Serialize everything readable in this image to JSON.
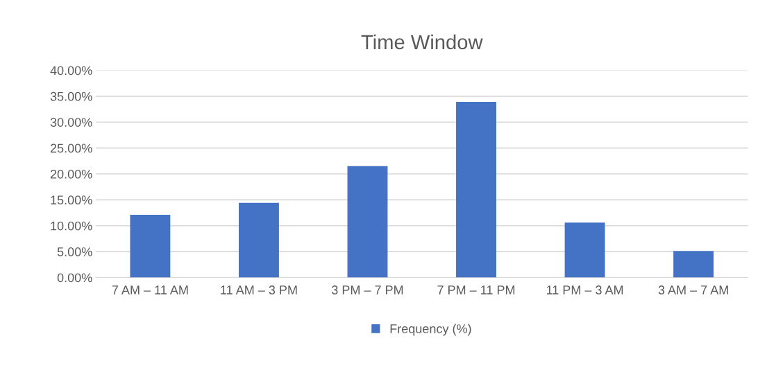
{
  "chart_data": {
    "type": "bar",
    "title": "Time Window",
    "categories": [
      "7 AM – 11 AM",
      "11 AM – 3 PM",
      "3 PM – 7 PM",
      "7 PM – 11 PM",
      "11 PM – 3 AM",
      "3 AM – 7 AM"
    ],
    "series": [
      {
        "name": "Frequency (%)",
        "color": "#4472c4",
        "values": [
          12.1,
          14.4,
          21.5,
          33.9,
          10.6,
          5.1
        ]
      }
    ],
    "ylim": [
      0,
      40
    ],
    "yticks": [
      {
        "value": 0,
        "label": "0.00%"
      },
      {
        "value": 5,
        "label": "5.00%"
      },
      {
        "value": 10,
        "label": "10.00%"
      },
      {
        "value": 15,
        "label": "15.00%"
      },
      {
        "value": 20,
        "label": "20.00%"
      },
      {
        "value": 25,
        "label": "25.00%"
      },
      {
        "value": 30,
        "label": "30.00%"
      },
      {
        "value": 35,
        "label": "35.00%"
      },
      {
        "value": 40,
        "label": "40.00%"
      }
    ],
    "grid": "y",
    "legend": "bottom"
  }
}
